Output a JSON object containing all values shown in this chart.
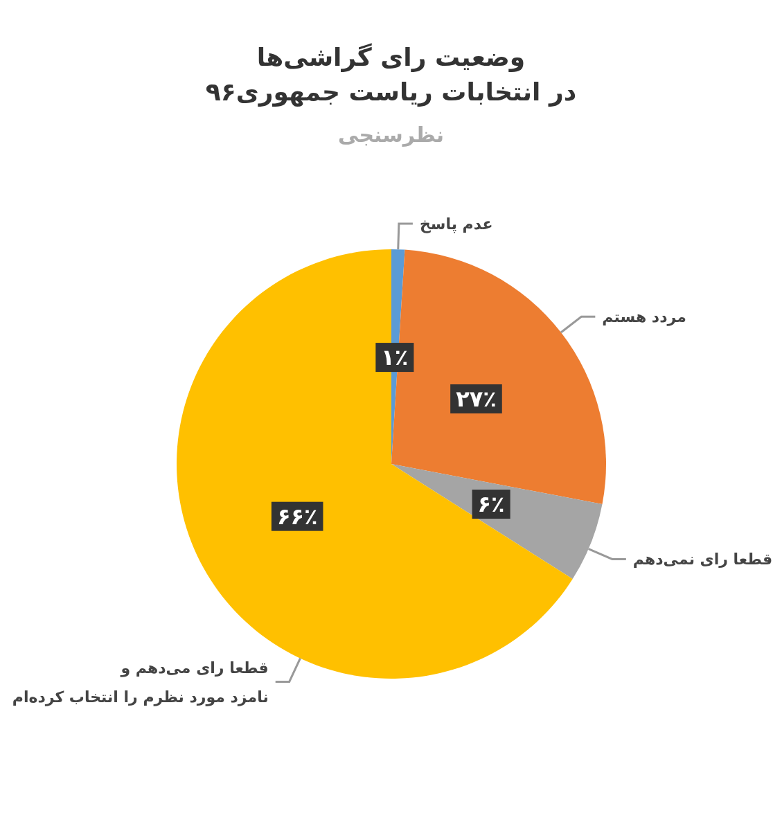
{
  "chart_data": {
    "type": "pie",
    "title": "وضعیت رای گراشی‌ها\nدر انتخابات ریاست جمهوری۹۶",
    "subtitle": "نظرسنجی",
    "categories": [
      "عدم پاسخ",
      "مردد هستم",
      "قطعا رای نمی‌دهم",
      "قطعا رای می‌دهم و\nنامزد مورد نظرم را انتخاب کرده‌ام"
    ],
    "values": [
      1,
      27,
      6,
      66
    ],
    "colors": [
      "#5b9bd5",
      "#ed7d31",
      "#a5a5a5",
      "#ffc000"
    ],
    "value_labels": [
      "۱٪",
      "۲۷٪",
      "۶٪",
      "۶۶٪"
    ]
  }
}
